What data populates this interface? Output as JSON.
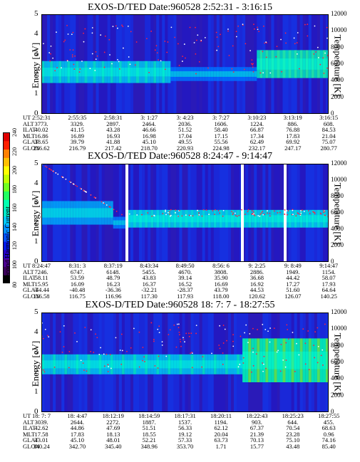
{
  "panels": [
    {
      "title": "EXOS-D/TED   Date:960528  2:52:31 - 3:16:15",
      "ylabel": "Energy [eV]",
      "y2label": "Temperature [K]",
      "yticks": [
        "0",
        "1",
        "2",
        "3",
        "4",
        "5"
      ],
      "y2ticks": [
        "0",
        "2000",
        "4000",
        "6000",
        "8000",
        "10000",
        "12000"
      ],
      "ephem_labels": [
        "UT",
        "ALT",
        "ILAT",
        "MLT",
        "GLAT",
        "GLON"
      ],
      "ephem": [
        [
          "2:52:31",
          "3773.",
          "40.02",
          "16.86",
          "38.65",
          "216.62"
        ],
        [
          "2:55:35",
          "3329.",
          "41.15",
          "16.89",
          "39.79",
          "216.79"
        ],
        [
          "2:58:31",
          "2897.",
          "43.28",
          "16.93",
          "41.88",
          "217.42"
        ],
        [
          "3: 1:27",
          "2464.",
          "46.66",
          "16.98",
          "45.10",
          "218.70"
        ],
        [
          "3: 4:23",
          "2036.",
          "51.52",
          "17.04",
          "49.55",
          "220.93"
        ],
        [
          "3: 7:27",
          "1606.",
          "58.40",
          "17.15",
          "55.56",
          "224.98"
        ],
        [
          "3:10:23",
          "1224.",
          "66.87",
          "17.34",
          "62.49",
          "232.17"
        ],
        [
          "3:13:19",
          "886.",
          "76.88",
          "17.83",
          "69.92",
          "247.17"
        ],
        [
          "3:16:15",
          "608.",
          "84.53",
          "21.04",
          "75.07",
          "280.77"
        ]
      ]
    },
    {
      "title": "EXOS-D/TED   Date:960528  8:24:47 - 9:14:47",
      "ylabel": "Energy [eV]",
      "y2label": "Temperature [K]",
      "yticks": [
        "0",
        "1",
        "2",
        "3",
        "4",
        "5"
      ],
      "y2ticks": [
        "0",
        "2000",
        "4000",
        "6000",
        "8000",
        "10000",
        "12000"
      ],
      "ephem_labels": [
        "UT",
        "ALT",
        "ILAT",
        "MLT",
        "GLAT",
        "GLON"
      ],
      "ephem": [
        [
          "8:24:47",
          "7246.",
          "58.11",
          "15.95",
          "-44.44",
          "116.58"
        ],
        [
          "8:31: 3",
          "6747.",
          "53.59",
          "16.09",
          "-40.48",
          "116.75"
        ],
        [
          "8:37:19",
          "6148.",
          "48.79",
          "16.23",
          "-36.36",
          "116.96"
        ],
        [
          "8:43:34",
          "5455.",
          "43.83",
          "16.37",
          "-32.21",
          "117.30"
        ],
        [
          "8:49:50",
          "4670.",
          "39.14",
          "16.52",
          "-28.37",
          "117.93"
        ],
        [
          "8:56: 6",
          "3808.",
          "35.90",
          "16.69",
          "43.79",
          "118.00"
        ],
        [
          "9: 2:25",
          "2886.",
          "36.68",
          "16.92",
          "44.53",
          "120.62"
        ],
        [
          "9: 8:49",
          "1949.",
          "44.42",
          "17.27",
          "51.60",
          "126.07"
        ],
        [
          "9:14:47",
          "1154.",
          "58.07",
          "17.93",
          "64.64",
          "140.25"
        ]
      ]
    },
    {
      "title": "EXOS-D/TED   Date:960528  18: 7: 7 - 18:27:55",
      "ylabel": "Energy [eV]",
      "y2label": "Temperature [K]",
      "yticks": [
        "0",
        "1",
        "2",
        "3",
        "4",
        "5"
      ],
      "y2ticks": [
        "0",
        "2000",
        "4000",
        "6000",
        "8000",
        "10000",
        "12000"
      ],
      "ephem_labels": [
        "UT",
        "ALT",
        "ILAT",
        "MLT",
        "GLAT",
        "GLON"
      ],
      "ephem": [
        [
          "18: 7: 7",
          "3039.",
          "42.62",
          "17.58",
          "43.01",
          "340.24"
        ],
        [
          "18: 4:47",
          "2644.",
          "44.86",
          "17.83",
          "45.10",
          "342.70"
        ],
        [
          "18:12:19",
          "2272.",
          "47.69",
          "18.13",
          "48.01",
          "345.40"
        ],
        [
          "18:14:59",
          "1887.",
          "51.51",
          "18.55",
          "52.21",
          "348.96"
        ],
        [
          "18:17:31",
          "1537.",
          "56.33",
          "19.12",
          "57.33",
          "353.70"
        ],
        [
          "18:20:11",
          "1194.",
          "62.12",
          "20.04",
          "63.73",
          "1.71"
        ],
        [
          "18:22:43",
          "903.",
          "67.37",
          "21.39",
          "70.13",
          "15.77"
        ],
        [
          "18:25:23",
          "644.",
          "70.54",
          "23.28",
          "75.10",
          "43.48"
        ],
        [
          "18:27:55",
          "455.",
          "68.63",
          "0.96",
          "74.16",
          "85.40"
        ]
      ]
    }
  ],
  "colorbar": {
    "label": "Second Harmonic Current",
    "ticks": [
      "80",
      "100",
      "120",
      "140",
      "160",
      "180",
      "200",
      "220",
      "240"
    ],
    "colors": [
      "#000000",
      "#3a0058",
      "#4b0090",
      "#2200c8",
      "#0018e8",
      "#0050ff",
      "#0090ff",
      "#00c8ff",
      "#00e8c8",
      "#00ffb0",
      "#20ff60",
      "#70ff20",
      "#c0ff00",
      "#ffff00",
      "#ffc000",
      "#ff8000",
      "#ff2000",
      "#e00000"
    ]
  },
  "chart_data": [
    {
      "type": "heatmap",
      "title": "EXOS-D/TED   Date:960528  2:52:31 - 3:16:15",
      "ylabel": "Energy [eV]",
      "y2label": "Temperature [K]",
      "ylim": [
        0,
        5
      ],
      "y2lim": [
        0,
        12000
      ],
      "xlim": [
        "2:52:31",
        "3:16:15"
      ],
      "colorbar_range": [
        80,
        240
      ]
    },
    {
      "type": "heatmap",
      "title": "EXOS-D/TED   Date:960528  8:24:47 - 9:14:47",
      "ylabel": "Energy [eV]",
      "y2label": "Temperature [K]",
      "ylim": [
        0,
        5
      ],
      "y2lim": [
        0,
        12000
      ],
      "xlim": [
        "8:24:47",
        "9:14:47"
      ],
      "colorbar_range": [
        80,
        240
      ]
    },
    {
      "type": "heatmap",
      "title": "EXOS-D/TED   Date:960528  18: 7: 7 - 18:27:55",
      "ylabel": "Energy [eV]",
      "y2label": "Temperature [K]",
      "ylim": [
        0,
        5
      ],
      "y2lim": [
        0,
        12000
      ],
      "xlim": [
        "18: 7: 7",
        "18:27:55"
      ],
      "colorbar_range": [
        80,
        240
      ]
    }
  ]
}
